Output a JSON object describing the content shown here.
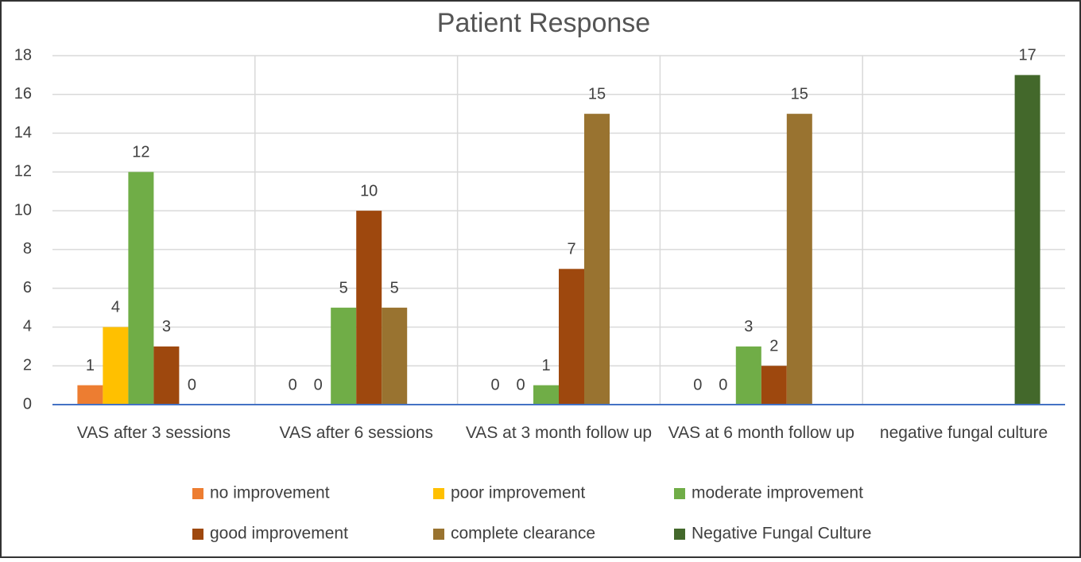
{
  "chart_data": {
    "type": "bar",
    "title": "Patient Response",
    "categories": [
      "VAS after 3 sessions",
      "VAS after 6 sessions",
      "VAS at 3 month follow up",
      "VAS at 6 month follow up",
      "negative fungal culture"
    ],
    "series": [
      {
        "name": "no improvement",
        "color": "#ed7d31",
        "values": [
          1,
          0,
          0,
          0,
          null
        ]
      },
      {
        "name": "poor improvement",
        "color": "#ffc000",
        "values": [
          4,
          0,
          0,
          0,
          null
        ]
      },
      {
        "name": "moderate improvement",
        "color": "#70ad47",
        "values": [
          12,
          5,
          1,
          3,
          null
        ]
      },
      {
        "name": "good improvement",
        "color": "#9e480e",
        "values": [
          3,
          10,
          7,
          2,
          null
        ]
      },
      {
        "name": "complete clearance",
        "color": "#997330",
        "values": [
          0,
          5,
          15,
          15,
          null
        ]
      },
      {
        "name": "Negative Fungal Culture",
        "color": "#43682b",
        "values": [
          null,
          null,
          null,
          null,
          17
        ]
      }
    ],
    "ylim": [
      0,
      18
    ],
    "yticks": [
      0,
      2,
      4,
      6,
      8,
      10,
      12,
      14,
      16,
      18
    ],
    "grid": true,
    "legend": "bottom"
  }
}
